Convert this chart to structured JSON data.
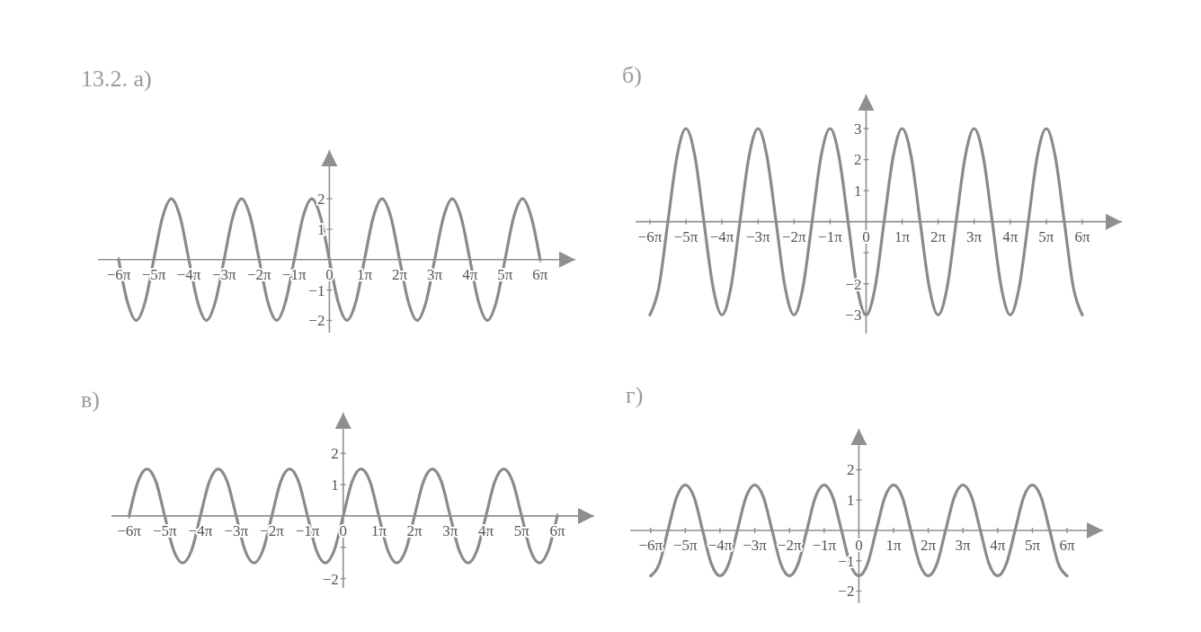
{
  "chart_data": [
    {
      "type": "line",
      "title": "13.2. а)",
      "x": [
        -18.85,
        -18.06,
        -17.28,
        -16.49,
        -15.71,
        -14.92,
        -14.14,
        -13.35,
        -12.57,
        -11.78,
        -11,
        -10.21,
        -9.42,
        -8.64,
        -7.85,
        -7.07,
        -6.28,
        -5.5,
        -4.71,
        -3.93,
        -3.14,
        -2.36,
        -1.57,
        -0.79,
        0,
        0.79,
        1.57,
        2.36,
        3.14,
        3.93,
        4.71,
        5.5,
        6.28,
        7.07,
        7.85,
        8.64,
        9.42,
        10.21,
        11,
        11.78,
        12.57,
        13.35,
        14.14,
        14.92,
        15.71,
        16.49,
        17.28,
        18.06,
        18.85
      ],
      "series": [
        {
          "color": "#8a8a8a",
          "values": [
            0,
            -1.4,
            -2,
            -1.4,
            0,
            1.4,
            2,
            1.4,
            0,
            -1.4,
            -2,
            -1.4,
            0,
            1.4,
            2,
            1.4,
            0,
            -1.4,
            -2,
            -1.4,
            0,
            1.4,
            2,
            1.4,
            0,
            -1.4,
            -2,
            -1.4,
            0,
            1.4,
            2,
            1.4,
            0,
            -1.4,
            -2,
            -1.4,
            0,
            1.4,
            2,
            1.4,
            0,
            -1.4,
            -2,
            -1.4,
            0,
            1.4,
            2,
            1.4,
            0
          ]
        }
      ],
      "xlim": [
        -20.7,
        22
      ],
      "ylim": [
        -2.4,
        3.6
      ],
      "xticks": [
        {
          "value": -18.85,
          "label": "−6π"
        },
        {
          "value": -15.71,
          "label": "−5π"
        },
        {
          "value": -12.57,
          "label": "−4π"
        },
        {
          "value": -9.42,
          "label": "−3π"
        },
        {
          "value": -6.28,
          "label": "−2π"
        },
        {
          "value": -3.14,
          "label": "−1π"
        },
        {
          "value": 0,
          "label": "0"
        },
        {
          "value": 3.14,
          "label": "1π"
        },
        {
          "value": 6.28,
          "label": "2π"
        },
        {
          "value": 9.42,
          "label": "3π"
        },
        {
          "value": 12.57,
          "label": "4π"
        },
        {
          "value": 15.71,
          "label": "5π"
        },
        {
          "value": 18.85,
          "label": "6π"
        }
      ],
      "yticks": [
        {
          "value": -2,
          "label": "−2"
        },
        {
          "value": -1,
          "label": "−1"
        },
        1,
        2
      ]
    },
    {
      "type": "line",
      "title": "б)",
      "x": [
        -18.85,
        -18.06,
        -17.28,
        -16.49,
        -15.71,
        -14.92,
        -14.14,
        -13.35,
        -12.57,
        -11.78,
        -11,
        -10.21,
        -9.42,
        -8.64,
        -7.85,
        -7.07,
        -6.28,
        -5.5,
        -4.71,
        -3.93,
        -3.14,
        -2.36,
        -1.57,
        -0.79,
        0,
        0.79,
        1.57,
        2.36,
        3.14,
        3.93,
        4.71,
        5.5,
        6.28,
        7.07,
        7.85,
        8.64,
        9.42,
        10.21,
        11,
        11.78,
        12.57,
        13.35,
        14.14,
        14.92,
        15.71,
        16.49,
        17.28,
        18.06,
        18.85
      ],
      "series": [
        {
          "color": "#8a8a8a",
          "values": [
            -3,
            -2.1,
            0,
            2.1,
            3,
            2.1,
            0,
            -2.1,
            -3,
            -2.1,
            0,
            2.1,
            3,
            2.1,
            0,
            -2.1,
            -3,
            -2.1,
            0,
            2.1,
            3,
            2.1,
            0,
            -2.1,
            -3,
            -2.1,
            0,
            2.1,
            3,
            2.1,
            0,
            -2.1,
            -3,
            -2.1,
            0,
            2.1,
            3,
            2.1,
            0,
            -2.1,
            -3,
            -2.1,
            0,
            2.1,
            3,
            2.1,
            0,
            -2.1,
            -3
          ]
        }
      ],
      "xlim": [
        -20.1,
        22.3
      ],
      "ylim": [
        -3.6,
        4.1
      ],
      "xticks": [
        {
          "value": -18.85,
          "label": "−6π"
        },
        {
          "value": -15.71,
          "label": "−5π"
        },
        {
          "value": -12.57,
          "label": "−4π"
        },
        {
          "value": -9.42,
          "label": "−3π"
        },
        {
          "value": -6.28,
          "label": "−2π"
        },
        {
          "value": -3.14,
          "label": "−1π"
        },
        {
          "value": 0,
          "label": "0"
        },
        {
          "value": 3.14,
          "label": "1π"
        },
        {
          "value": 6.28,
          "label": "2π"
        },
        {
          "value": 9.42,
          "label": "3π"
        },
        {
          "value": 12.57,
          "label": "4π"
        },
        {
          "value": 15.71,
          "label": "5π"
        },
        {
          "value": 18.85,
          "label": "6π"
        }
      ],
      "yticks": [
        {
          "value": -3,
          "label": "−3"
        },
        {
          "value": -2,
          "label": "−2"
        },
        {
          "value": -1,
          "label": null
        },
        1,
        2,
        3
      ]
    },
    {
      "type": "line",
      "title": "в)",
      "x": [
        -18.85,
        -18.06,
        -17.28,
        -16.49,
        -15.71,
        -14.92,
        -14.14,
        -13.35,
        -12.57,
        -11.78,
        -11,
        -10.21,
        -9.42,
        -8.64,
        -7.85,
        -7.07,
        -6.28,
        -5.5,
        -4.71,
        -3.93,
        -3.14,
        -2.36,
        -1.57,
        -0.79,
        0,
        0.79,
        1.57,
        2.36,
        3.14,
        3.93,
        4.71,
        5.5,
        6.28,
        7.07,
        7.85,
        8.64,
        9.42,
        10.21,
        11,
        11.78,
        12.57,
        13.35,
        14.14,
        14.92,
        15.71,
        16.49,
        17.28,
        18.06,
        18.85
      ],
      "series": [
        {
          "color": "#8a8a8a",
          "values": [
            0,
            1.1,
            1.5,
            1.1,
            0,
            -1.1,
            -1.5,
            -1.1,
            0,
            1.1,
            1.5,
            1.1,
            0,
            -1.1,
            -1.5,
            -1.1,
            0,
            1.1,
            1.5,
            1.1,
            0,
            -1.1,
            -1.5,
            -1.1,
            0,
            1.1,
            1.5,
            1.1,
            0,
            -1.1,
            -1.5,
            -1.1,
            0,
            1.1,
            1.5,
            1.1,
            0,
            -1.1,
            -1.5,
            -1.1,
            0,
            1.1,
            1.5,
            1.1,
            0,
            -1.1,
            -1.5,
            -1.1,
            0
          ]
        }
      ],
      "xlim": [
        -20.4,
        22.1
      ],
      "ylim": [
        -2.3,
        3.3
      ],
      "xticks": [
        {
          "value": -18.85,
          "label": "−6π"
        },
        {
          "value": -15.71,
          "label": "−5π"
        },
        {
          "value": -12.57,
          "label": "−4π"
        },
        {
          "value": -9.42,
          "label": "−3π"
        },
        {
          "value": -6.28,
          "label": "−2π"
        },
        {
          "value": -3.14,
          "label": "−1π"
        },
        {
          "value": 0,
          "label": "0"
        },
        {
          "value": 3.14,
          "label": "1π"
        },
        {
          "value": 6.28,
          "label": "2π"
        },
        {
          "value": 9.42,
          "label": "3π"
        },
        {
          "value": 12.57,
          "label": "4π"
        },
        {
          "value": 15.71,
          "label": "5π"
        },
        {
          "value": 18.85,
          "label": "6π"
        }
      ],
      "yticks": [
        {
          "value": -2,
          "label": "−2"
        },
        {
          "value": -1,
          "label": null
        },
        1,
        2
      ]
    },
    {
      "type": "line",
      "title": "г)",
      "x": [
        -18.85,
        -18.06,
        -17.28,
        -16.49,
        -15.71,
        -14.92,
        -14.14,
        -13.35,
        -12.57,
        -11.78,
        -11,
        -10.21,
        -9.42,
        -8.64,
        -7.85,
        -7.07,
        -6.28,
        -5.5,
        -4.71,
        -3.93,
        -3.14,
        -2.36,
        -1.57,
        -0.79,
        0,
        0.79,
        1.57,
        2.36,
        3.14,
        3.93,
        4.71,
        5.5,
        6.28,
        7.07,
        7.85,
        8.64,
        9.42,
        10.21,
        11,
        11.78,
        12.57,
        13.35,
        14.14,
        14.92,
        15.71,
        16.49,
        17.28,
        18.06,
        18.85
      ],
      "series": [
        {
          "color": "#8a8a8a",
          "values": [
            -1.5,
            -1.1,
            0,
            1.1,
            1.5,
            1.1,
            0,
            -1.1,
            -1.5,
            -1.1,
            0,
            1.1,
            1.5,
            1.1,
            0,
            -1.1,
            -1.5,
            -1.1,
            0,
            1.1,
            1.5,
            1.1,
            0,
            -1.1,
            -1.5,
            -1.1,
            0,
            1.1,
            1.5,
            1.1,
            0,
            -1.1,
            -1.5,
            -1.1,
            0,
            1.1,
            1.5,
            1.1,
            0,
            -1.1,
            -1.5,
            -1.1,
            0,
            1.1,
            1.5,
            1.1,
            0,
            -1.1,
            -1.5
          ]
        }
      ],
      "xlim": [
        -20.7,
        22.1
      ],
      "ylim": [
        -2.4,
        3.35
      ],
      "xticks": [
        {
          "value": -18.85,
          "label": "−6π"
        },
        {
          "value": -15.71,
          "label": "−5π"
        },
        {
          "value": -12.57,
          "label": "−4π"
        },
        {
          "value": -9.42,
          "label": "−3π"
        },
        {
          "value": -6.28,
          "label": "−2π"
        },
        {
          "value": -3.14,
          "label": "−1π"
        },
        {
          "value": 0,
          "label": "0"
        },
        {
          "value": 3.14,
          "label": "1π"
        },
        {
          "value": 6.28,
          "label": "2π"
        },
        {
          "value": 9.42,
          "label": "3π"
        },
        {
          "value": 12.57,
          "label": "4π"
        },
        {
          "value": 15.71,
          "label": "5π"
        },
        {
          "value": 18.85,
          "label": "6π"
        }
      ],
      "yticks": [
        {
          "value": -2,
          "label": "−2"
        },
        {
          "value": -1,
          "label": "−1"
        },
        1,
        2
      ]
    }
  ]
}
